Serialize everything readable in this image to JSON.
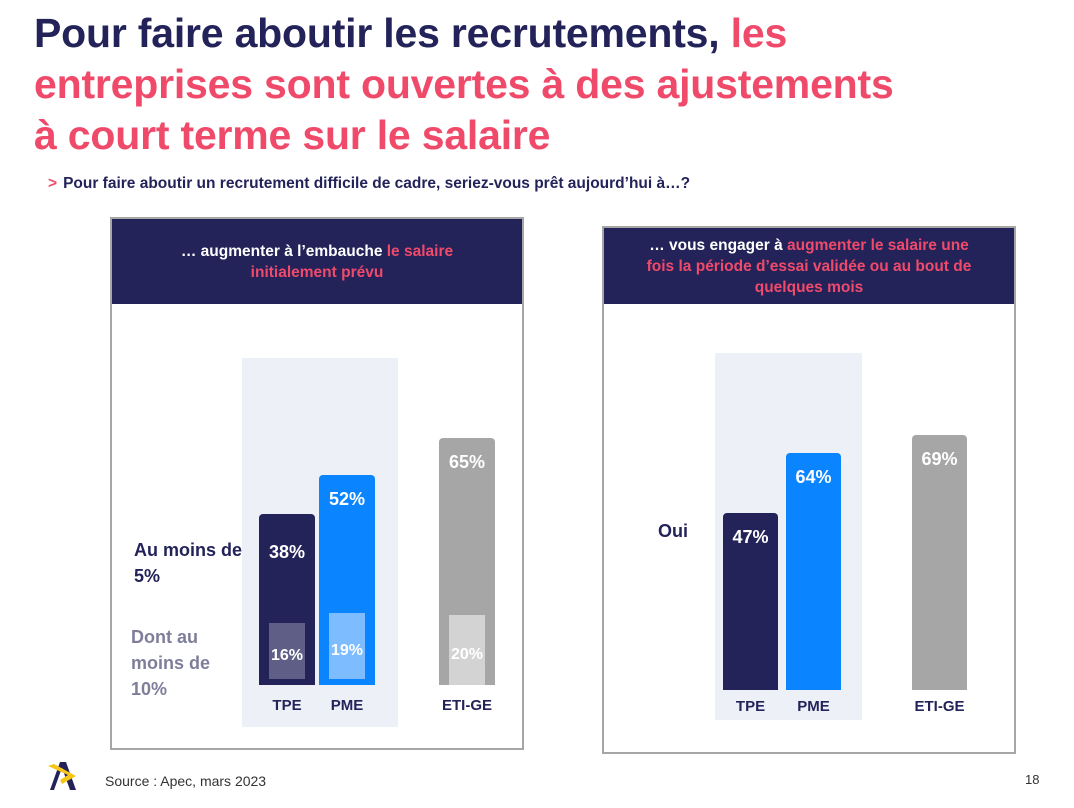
{
  "title": {
    "line1_dark": "Pour faire aboutir les recrutements,",
    "line1_pink": "les",
    "line2": "entreprises sont ouvertes à des ajustements",
    "line3": "à court terme sur le salaire"
  },
  "subtitle": {
    "marker": ">",
    "text": "Pour faire aboutir un recrutement difficile de cadre, seriez-vous prêt aujourd’hui à…?"
  },
  "footer": {
    "source": "Source : Apec, mars 2023",
    "page": "18"
  },
  "colors": {
    "navy": "#23235a",
    "pink": "#f04a6b",
    "blue": "#0a84ff",
    "gray": "#a6a6a6",
    "navy_light": "#5e5e87",
    "blue_light": "#7dbcff",
    "gray_light": "#d3d3d3",
    "highlight": "#eef0f8"
  },
  "chart_data": [
    {
      "type": "bar",
      "title_white": "… augmenter à l’embauche ",
      "title_pink": "le salaire initialement prévu",
      "categories": [
        "TPE",
        "PME",
        "ETI-GE"
      ],
      "highlighted_categories": [
        "TPE",
        "PME"
      ],
      "series": [
        {
          "name": "Au moins de 5%",
          "values": [
            38,
            52,
            65
          ],
          "labels": [
            "38%",
            "52%",
            "65%"
          ]
        },
        {
          "name": "Dont au moins de 10%",
          "values": [
            16,
            19,
            20
          ],
          "labels": [
            "16%",
            "19%",
            "20%"
          ]
        }
      ]
    },
    {
      "type": "bar",
      "title_white": "… vous engager à ",
      "title_pink": "augmenter le salaire une fois la période d’essai validée ou au bout de quelques mois",
      "categories": [
        "TPE",
        "PME",
        "ETI-GE"
      ],
      "highlighted_categories": [
        "TPE",
        "PME"
      ],
      "series": [
        {
          "name": "Oui",
          "values": [
            47,
            64,
            69
          ],
          "labels": [
            "47%",
            "64%",
            "69%"
          ]
        }
      ]
    }
  ]
}
